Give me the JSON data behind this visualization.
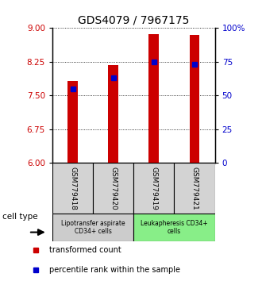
{
  "title": "GDS4079 / 7967175",
  "samples": [
    "GSM779418",
    "GSM779420",
    "GSM779419",
    "GSM779421"
  ],
  "red_values": [
    7.82,
    8.18,
    8.87,
    8.85
  ],
  "blue_percentiles": [
    55,
    63,
    75,
    73
  ],
  "ymin": 6,
  "ymax": 9,
  "yticks": [
    6,
    6.75,
    7.5,
    8.25,
    9
  ],
  "right_yticks": [
    0,
    25,
    50,
    75,
    100
  ],
  "cell_types": [
    {
      "label": "Lipotransfer aspirate\nCD34+ cells",
      "samples": [
        0,
        1
      ],
      "color": "#cccccc"
    },
    {
      "label": "Leukapheresis CD34+\ncells",
      "samples": [
        2,
        3
      ],
      "color": "#88ee88"
    }
  ],
  "cell_type_label": "cell type",
  "legend_items": [
    {
      "color": "#cc0000",
      "label": "transformed count"
    },
    {
      "color": "#0000cc",
      "label": "percentile rank within the sample"
    }
  ],
  "bar_width": 0.25,
  "bar_color": "#cc0000",
  "dot_color": "#0000cc",
  "title_fontsize": 10,
  "tick_label_color_left": "#cc0000",
  "tick_label_color_right": "#0000cc",
  "sample_box_color": "#d3d3d3"
}
